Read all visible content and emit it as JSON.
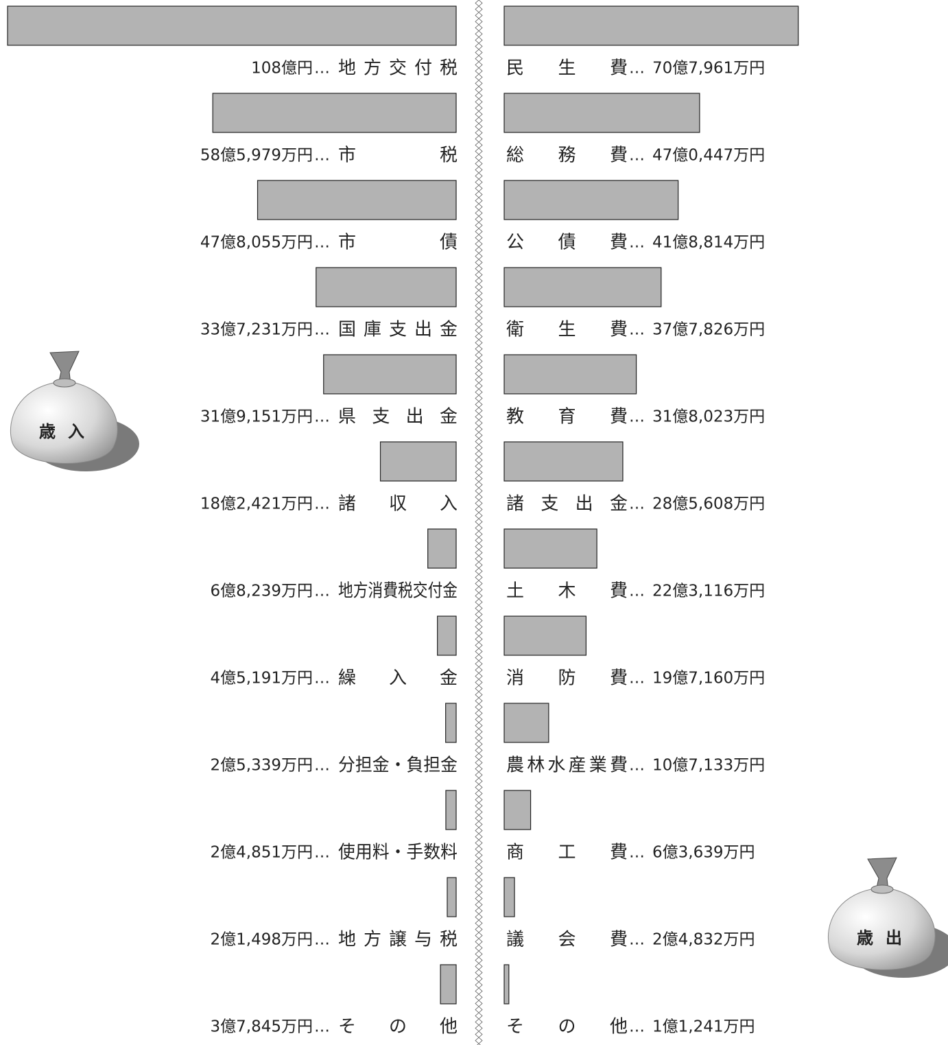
{
  "chart_data": {
    "type": "butterfly-bar",
    "separator": "…",
    "series": [
      {
        "name": "歳入",
        "color": "#b3b3b3",
        "categories": [
          "地方交付税",
          "市税",
          "市債",
          "国庫支出金",
          "県支出金",
          "諸収入",
          "地方消費税交付金",
          "繰入金",
          "分担金・負担金",
          "使用料・手数料",
          "地方譲与税",
          "その他"
        ],
        "values": [
          1080000,
          585979,
          478055,
          337231,
          319151,
          182421,
          68239,
          45191,
          25339,
          24851,
          21498,
          37845
        ],
        "value_labels": [
          "108億円",
          "58億5,979万円",
          "47億8,055万円",
          "33億7,231万円",
          "31億9,151万円",
          "18億2,421万円",
          "6億8,239万円",
          "4億5,191万円",
          "2億5,339万円",
          "2億4,851万円",
          "2億1,498万円",
          "3億7,845万円"
        ]
      },
      {
        "name": "歳出",
        "color": "#b3b3b3",
        "categories": [
          "民生費",
          "総務費",
          "公債費",
          "衛生費",
          "教育費",
          "諸支出金",
          "土木費",
          "消防費",
          "農林水産業費",
          "商工費",
          "議会費",
          "その他"
        ],
        "values": [
          707961,
          470447,
          418814,
          377826,
          318023,
          285608,
          223116,
          197160,
          107133,
          63639,
          24832,
          11241
        ],
        "value_labels": [
          "70億7,961万円",
          "47億0,447万円",
          "41億8,814万円",
          "37億7,826万円",
          "31億8,023万円",
          "28億5,608万円",
          "22億3,116万円",
          "19億7,160万円",
          "10億7,133万円",
          "6億3,639万円",
          "2億4,832万円",
          "1億1,241万円"
        ]
      }
    ]
  }
}
